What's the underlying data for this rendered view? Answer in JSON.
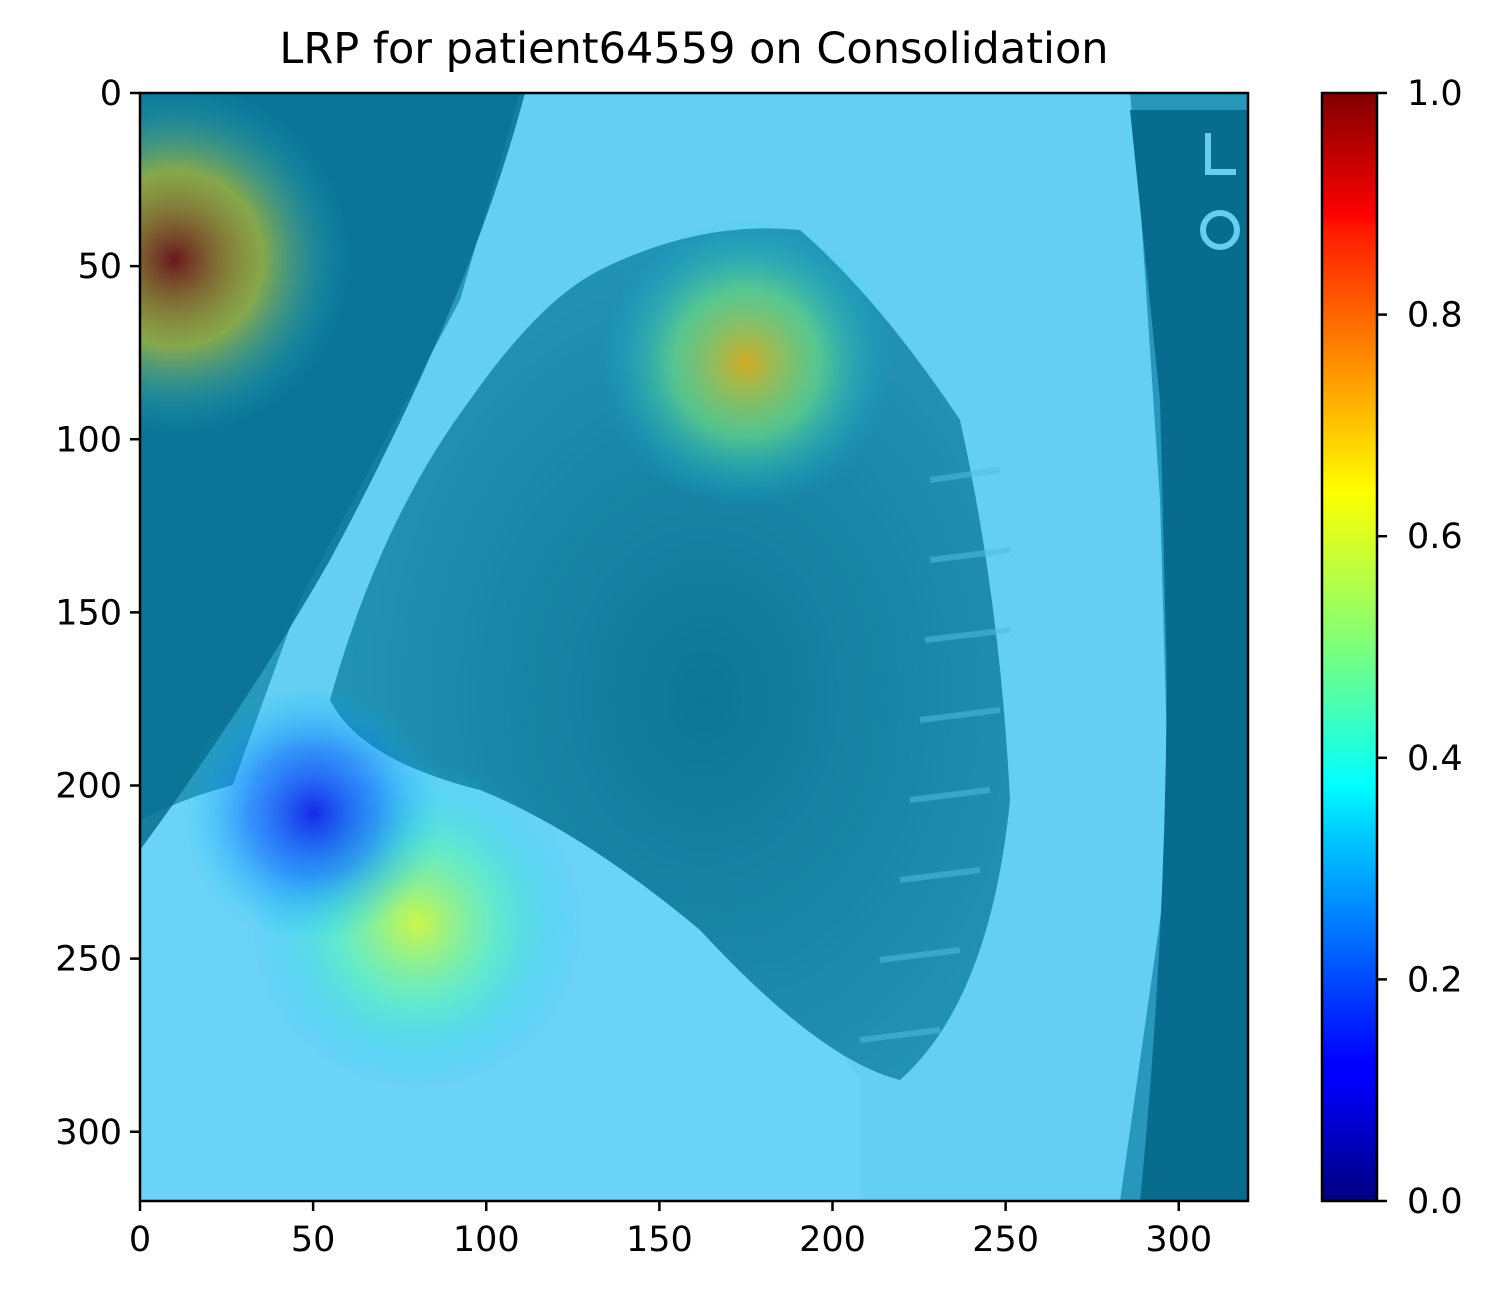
{
  "chart_data": {
    "type": "heatmap",
    "title": "LRP for patient64559 on Consolidation",
    "xlabel": "",
    "ylabel": "",
    "xlim": [
      0,
      320
    ],
    "ylim": [
      320,
      0
    ],
    "xticks": [
      0,
      50,
      100,
      150,
      200,
      250,
      300
    ],
    "yticks": [
      0,
      50,
      100,
      150,
      200,
      250,
      300
    ],
    "grid": false,
    "colormap": "jet",
    "colorbar": {
      "range": [
        0.0,
        1.0
      ],
      "ticks": [
        "0.0",
        "0.2",
        "0.4",
        "0.6",
        "0.8",
        "1.0"
      ]
    },
    "background_image": "lateral chest x-ray",
    "overlay_opacity": 0.5,
    "hotspots": [
      {
        "x": 10,
        "y": 48,
        "value": 1.0,
        "radius": 30
      },
      {
        "x": 175,
        "y": 78,
        "value": 0.7,
        "radius": 25
      },
      {
        "x": 80,
        "y": 240,
        "value": 0.6,
        "radius": 28
      },
      {
        "x": 50,
        "y": 208,
        "value": 0.1,
        "radius": 22
      }
    ],
    "base_value": 0.32
  }
}
